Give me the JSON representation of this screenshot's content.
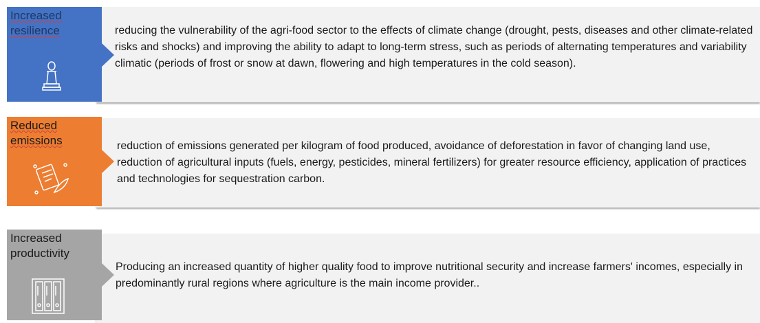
{
  "items": [
    {
      "title": "Increased resilience",
      "description": "reducing the vulnerability of the agri-food sector to the effects of climate change (drought, pests, diseases and other climate-related risks and shocks) and improving the ability to adapt to long-term stress, such as periods of alternating temperatures and variability climatic (periods of frost or snow at dawn, flowering and high temperatures in the cold season)."
    },
    {
      "title": "Reduced emissions",
      "description": "reduction of emissions generated per kilogram of food produced, avoidance of deforestation in favor of changing land use, reduction of agricultural inputs (fuels, energy, pesticides, mineral fertilizers) for greater resource efficiency, application of practices and technologies for sequestration carbon."
    },
    {
      "title": "Increased productivity",
      "description": "Producing an increased quantity of higher quality food to improve nutritional security and increase farmers' incomes, especially in predominantly rural regions where agriculture is the main income provider.."
    }
  ]
}
